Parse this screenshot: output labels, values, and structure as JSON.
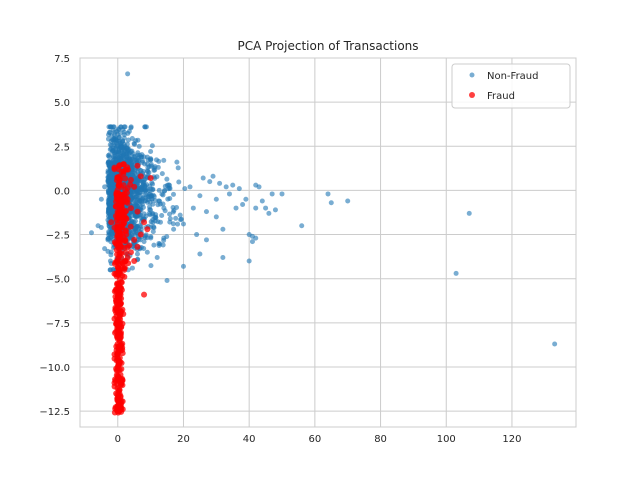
{
  "chart_data": {
    "type": "scatter",
    "title": "PCA Projection of Transactions",
    "xlabel": "",
    "ylabel": "",
    "xlim": [
      -11.5,
      139.5
    ],
    "ylim": [
      -13.4,
      7.5
    ],
    "x_ticks": [
      0,
      20,
      40,
      60,
      80,
      100,
      120
    ],
    "y_ticks": [
      7.5,
      5.0,
      2.5,
      0.0,
      -2.5,
      -5.0,
      -7.5,
      -10.0,
      -12.5
    ],
    "x_tick_labels": [
      "0",
      "20",
      "40",
      "60",
      "80",
      "100",
      "120"
    ],
    "y_tick_labels": [
      "7.5",
      "5.0",
      "2.5",
      "0.0",
      "−2.5",
      "−5.0",
      "−7.5",
      "−10.0",
      "−12.5"
    ],
    "grid": true,
    "legend_position": "top-right",
    "series": [
      {
        "name": "Non-Fraud",
        "color": "#1f77b4",
        "cluster": {
          "x_range": [
            -3,
            30
          ],
          "y_range": [
            -4.5,
            3.6
          ],
          "count": 1600
        },
        "points": [
          [
            3,
            6.6
          ],
          [
            1,
            3.6
          ],
          [
            2,
            3.3
          ],
          [
            0.5,
            3.0
          ],
          [
            1.5,
            2.8
          ],
          [
            -8,
            -2.4
          ],
          [
            -6,
            -2.0
          ],
          [
            -5,
            -2.1
          ],
          [
            -4,
            -3.3
          ],
          [
            -3,
            -2.8
          ],
          [
            -5,
            -0.5
          ],
          [
            -4,
            0.2
          ],
          [
            -3,
            1.0
          ],
          [
            12,
            -3.8
          ],
          [
            15,
            -5.1
          ],
          [
            20,
            -4.3
          ],
          [
            25,
            -3.6
          ],
          [
            32,
            -3.8
          ],
          [
            22,
            0.2
          ],
          [
            25,
            -0.3
          ],
          [
            28,
            0.5
          ],
          [
            30,
            -0.5
          ],
          [
            33,
            0.2
          ],
          [
            35,
            0.3
          ],
          [
            36,
            -1.0
          ],
          [
            38,
            -0.8
          ],
          [
            40,
            -2.5
          ],
          [
            41,
            -2.6
          ],
          [
            42,
            -2.7
          ],
          [
            41,
            -2.9
          ],
          [
            40,
            -4.0
          ],
          [
            42,
            -1.0
          ],
          [
            42,
            0.3
          ],
          [
            43,
            0.2
          ],
          [
            45,
            -1.0
          ],
          [
            46,
            -1.3
          ],
          [
            47,
            -0.2
          ],
          [
            50,
            -0.2
          ],
          [
            48,
            -1.1
          ],
          [
            56,
            -2.0
          ],
          [
            64,
            -0.2
          ],
          [
            65,
            -0.7
          ],
          [
            70,
            -0.6
          ],
          [
            103,
            -4.7
          ],
          [
            107,
            -1.3
          ],
          [
            133,
            -8.7
          ],
          [
            32,
            -2.2
          ],
          [
            30,
            -1.5
          ],
          [
            27,
            -2.8
          ],
          [
            24,
            -2.5
          ],
          [
            20,
            -1.9
          ],
          [
            17,
            -2.2
          ],
          [
            14,
            -2.7
          ],
          [
            11,
            -3.1
          ],
          [
            9,
            -3.5
          ],
          [
            8,
            -2.9
          ],
          [
            6,
            -3.6
          ],
          [
            5,
            -3.0
          ],
          [
            4,
            -2.4
          ],
          [
            3,
            -3.8
          ],
          [
            2,
            -4.4
          ],
          [
            18,
            1.6
          ],
          [
            14,
            1.7
          ],
          [
            10,
            1.8
          ],
          [
            8,
            1.9
          ],
          [
            6,
            2.0
          ],
          [
            4,
            2.2
          ],
          [
            3,
            2.4
          ],
          [
            2,
            2.6
          ],
          [
            26,
            0.7
          ],
          [
            29,
            0.8
          ],
          [
            31,
            0.4
          ],
          [
            34,
            -0.2
          ],
          [
            37,
            0.1
          ],
          [
            39,
            -0.5
          ],
          [
            44,
            -0.6
          ],
          [
            27,
            -1.2
          ],
          [
            23,
            -1.0
          ],
          [
            19,
            -1.4
          ],
          [
            16,
            -1.6
          ],
          [
            13,
            -1.8
          ]
        ]
      },
      {
        "name": "Fraud",
        "color": "#ff0000",
        "cluster": {
          "x_range": [
            -1,
            5
          ],
          "y_range": [
            -12.6,
            1.5
          ],
          "count": 380
        },
        "points": [
          [
            6,
            1.4
          ],
          [
            7,
            0.8
          ],
          [
            10,
            0.7
          ],
          [
            4,
            0.6
          ],
          [
            5,
            0.2
          ],
          [
            3,
            -0.5
          ],
          [
            4,
            -1.0
          ],
          [
            6,
            -1.2
          ],
          [
            8,
            -1.8
          ],
          [
            9,
            -2.2
          ],
          [
            7,
            -2.5
          ],
          [
            5,
            -2.8
          ],
          [
            6,
            -3.2
          ],
          [
            4,
            -3.5
          ],
          [
            3,
            -3.8
          ],
          [
            5,
            -4.0
          ],
          [
            2,
            -4.5
          ],
          [
            8,
            -5.9
          ],
          [
            -2,
            -1.8
          ],
          [
            -1,
            -2.1
          ],
          [
            0,
            -12.5
          ],
          [
            1,
            -12.1
          ],
          [
            0,
            -11.8
          ],
          [
            -0.5,
            -11.5
          ],
          [
            1,
            -11.0
          ],
          [
            0,
            -10.5
          ],
          [
            -0.5,
            -10.1
          ],
          [
            0.5,
            -9.7
          ],
          [
            0,
            -9.2
          ],
          [
            1,
            -8.8
          ],
          [
            0,
            -8.4
          ],
          [
            -0.5,
            -8.0
          ],
          [
            0,
            -7.6
          ],
          [
            0.5,
            -7.2
          ],
          [
            0,
            -6.8
          ],
          [
            1,
            -6.4
          ],
          [
            0,
            -6.0
          ],
          [
            -0.5,
            -5.6
          ],
          [
            1,
            -5.2
          ],
          [
            2,
            -4.9
          ]
        ]
      }
    ]
  }
}
